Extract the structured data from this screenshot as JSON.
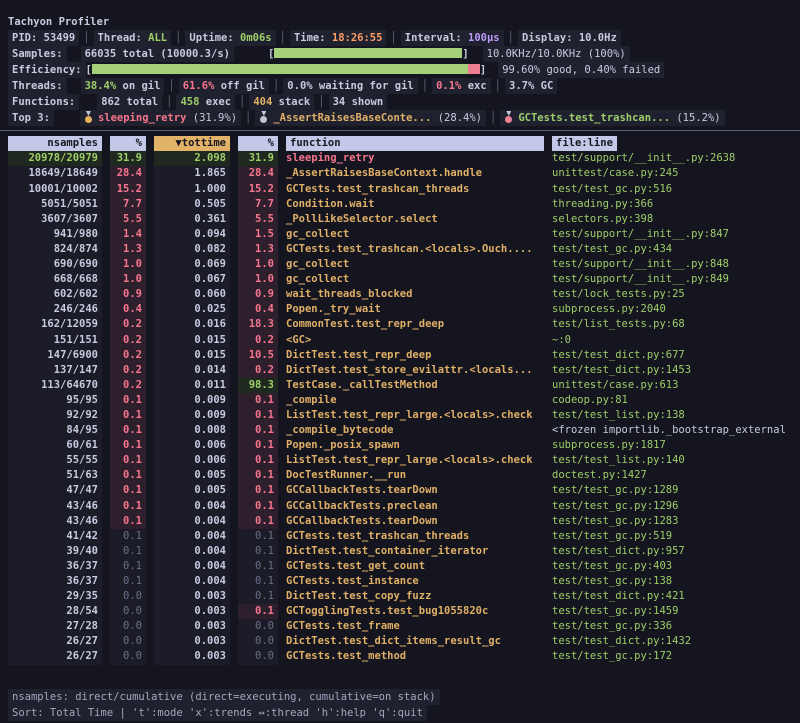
{
  "title": "Tachyon Profiler",
  "status": {
    "segments": [
      {
        "key": "pid",
        "label": "PID:",
        "value": "53499",
        "color": "fg"
      },
      {
        "key": "thread",
        "label": "Thread:",
        "value": "ALL",
        "color": "green"
      },
      {
        "key": "uptime",
        "label": "Uptime:",
        "value": "0m06s",
        "color": "green"
      },
      {
        "key": "time",
        "label": "Time:",
        "value": "18:26:55",
        "color": "orange"
      },
      {
        "key": "interval",
        "label": "Interval:",
        "value": "100µs",
        "color": "purple"
      },
      {
        "key": "display",
        "label": "Display:",
        "value": "10.0Hz",
        "color": "fg"
      }
    ]
  },
  "samples": {
    "label": "Samples:",
    "value": "66035 total (10000.3/s)",
    "bar_fill_pct": 100,
    "rate": "10.0KHz/10.0KHz (100%)"
  },
  "efficiency": {
    "label": "Efficiency:",
    "good_pct": 99.6,
    "failed_pct": 0.4,
    "summary": "99.60% good, 0.40% failed"
  },
  "threads": {
    "label": "Threads:",
    "stats": [
      {
        "value": "38.4%",
        "text": " on gil",
        "color": "green"
      },
      {
        "value": "61.6%",
        "text": " off gil",
        "color": "red"
      },
      {
        "value": "0.0%",
        "text": " waiting for gil",
        "color": "fg"
      },
      {
        "value": "0.1%",
        "text": " exc",
        "color": "red"
      },
      {
        "value": "3.7%",
        "text": " GC",
        "color": "fg"
      }
    ]
  },
  "functions": {
    "label": "Functions:",
    "stats": [
      {
        "value": "862",
        "text": " total",
        "color": "fg"
      },
      {
        "value": "458",
        "text": " exec",
        "color": "green"
      },
      {
        "value": "404",
        "text": " stack",
        "color": "yellow"
      },
      {
        "value": "34",
        "text": " shown",
        "color": "fg"
      }
    ]
  },
  "top3": {
    "label": "Top 3:",
    "entries": [
      {
        "rank": 1,
        "medal": "gold",
        "name": "sleeping_retry",
        "pct": "(31.9%)",
        "color": "red"
      },
      {
        "rank": 2,
        "medal": "silver",
        "name": "_AssertRaisesBaseConte...",
        "pct": "(28.4%)",
        "color": "yellow"
      },
      {
        "rank": 3,
        "medal": "bronze",
        "name": "GCTests.test_trashcan...",
        "pct": "(15.2%)",
        "color": "green"
      }
    ]
  },
  "table": {
    "columns": [
      {
        "label": "nsamples",
        "align": "r"
      },
      {
        "label": "%",
        "align": "r"
      },
      {
        "label": "▼tottime",
        "align": "r",
        "sorted": true
      },
      {
        "label": "%",
        "align": "r"
      },
      {
        "label": "function",
        "align": "l"
      },
      {
        "label": "file:line",
        "align": "l",
        "fit": true
      }
    ],
    "rows": [
      {
        "nsamples": "20978/20979",
        "pct": "31.9",
        "tottime": "2.098",
        "cum_pct": "31.9",
        "function": "sleeping_retry",
        "file": "test/support/__init__.py:2638",
        "styles": [
          "g",
          "g",
          "g",
          "g",
          "hot",
          "fl"
        ]
      },
      {
        "nsamples": "18649/18649",
        "pct": "28.4",
        "tottime": "1.865",
        "cum_pct": "28.4",
        "function": "_AssertRaisesBaseContext.handle",
        "file": "unittest/case.py:245",
        "styles": [
          "p",
          "r",
          "p",
          "r",
          "fn",
          "fl"
        ]
      },
      {
        "nsamples": "10001/10002",
        "pct": "15.2",
        "tottime": "1.000",
        "cum_pct": "15.2",
        "function": "GCTests.test_trashcan_threads",
        "file": "test/test_gc.py:516",
        "styles": [
          "p",
          "r",
          "p",
          "r",
          "fn",
          "fl"
        ]
      },
      {
        "nsamples": "5051/5051",
        "pct": "7.7",
        "tottime": "0.505",
        "cum_pct": "7.7",
        "function": "Condition.wait",
        "file": "threading.py:366",
        "styles": [
          "p",
          "r",
          "p",
          "r",
          "fn",
          "fl"
        ]
      },
      {
        "nsamples": "3607/3607",
        "pct": "5.5",
        "tottime": "0.361",
        "cum_pct": "5.5",
        "function": "_PollLikeSelector.select",
        "file": "selectors.py:398",
        "styles": [
          "p",
          "r",
          "p",
          "r",
          "fn",
          "fl"
        ]
      },
      {
        "nsamples": "941/980",
        "pct": "1.4",
        "tottime": "0.094",
        "cum_pct": "1.5",
        "function": "gc_collect",
        "file": "test/support/__init__.py:847",
        "styles": [
          "p",
          "r",
          "p",
          "r",
          "fn",
          "fl"
        ]
      },
      {
        "nsamples": "824/874",
        "pct": "1.3",
        "tottime": "0.082",
        "cum_pct": "1.3",
        "function": "GCTests.test_trashcan.<locals>.Ouch....",
        "file": "test/test_gc.py:434",
        "styles": [
          "p",
          "r",
          "p",
          "r",
          "fn",
          "fl"
        ]
      },
      {
        "nsamples": "690/690",
        "pct": "1.0",
        "tottime": "0.069",
        "cum_pct": "1.0",
        "function": "gc_collect",
        "file": "test/support/__init__.py:848",
        "styles": [
          "p",
          "r",
          "p",
          "r",
          "fn",
          "fl"
        ]
      },
      {
        "nsamples": "668/668",
        "pct": "1.0",
        "tottime": "0.067",
        "cum_pct": "1.0",
        "function": "gc_collect",
        "file": "test/support/__init__.py:849",
        "styles": [
          "p",
          "r",
          "p",
          "r",
          "fn",
          "fl"
        ]
      },
      {
        "nsamples": "602/602",
        "pct": "0.9",
        "tottime": "0.060",
        "cum_pct": "0.9",
        "function": "wait_threads_blocked",
        "file": "test/lock_tests.py:25",
        "styles": [
          "p",
          "r",
          "p",
          "r",
          "fn",
          "fl"
        ]
      },
      {
        "nsamples": "246/246",
        "pct": "0.4",
        "tottime": "0.025",
        "cum_pct": "0.4",
        "function": "Popen._try_wait",
        "file": "subprocess.py:2040",
        "styles": [
          "p",
          "r",
          "p",
          "r",
          "fn",
          "fl"
        ]
      },
      {
        "nsamples": "162/12059",
        "pct": "0.2",
        "tottime": "0.016",
        "cum_pct": "18.3",
        "function": "CommonTest.test_repr_deep",
        "file": "test/list_tests.py:68",
        "styles": [
          "p",
          "r",
          "p",
          "r",
          "fn",
          "fl"
        ]
      },
      {
        "nsamples": "151/151",
        "pct": "0.2",
        "tottime": "0.015",
        "cum_pct": "0.2",
        "function": "<GC>",
        "file": "~:0",
        "styles": [
          "p",
          "r",
          "p",
          "r",
          "fn",
          "fl"
        ]
      },
      {
        "nsamples": "147/6900",
        "pct": "0.2",
        "tottime": "0.015",
        "cum_pct": "10.5",
        "function": "DictTest.test_repr_deep",
        "file": "test/test_dict.py:677",
        "styles": [
          "p",
          "r",
          "p",
          "r",
          "fn",
          "fl"
        ]
      },
      {
        "nsamples": "137/147",
        "pct": "0.2",
        "tottime": "0.014",
        "cum_pct": "0.2",
        "function": "DictTest.test_store_evilattr.<locals...",
        "file": "test/test_dict.py:1453",
        "styles": [
          "p",
          "r",
          "p",
          "r",
          "fn",
          "fl"
        ]
      },
      {
        "nsamples": "113/64670",
        "pct": "0.2",
        "tottime": "0.011",
        "cum_pct": "98.3",
        "function": "TestCase._callTestMethod",
        "file": "unittest/case.py:613",
        "styles": [
          "p",
          "r",
          "p",
          "g",
          "fn",
          "fl"
        ]
      },
      {
        "nsamples": "95/95",
        "pct": "0.1",
        "tottime": "0.009",
        "cum_pct": "0.1",
        "function": "_compile",
        "file": "codeop.py:81",
        "styles": [
          "p",
          "r",
          "p",
          "r",
          "fn",
          "fl"
        ]
      },
      {
        "nsamples": "92/92",
        "pct": "0.1",
        "tottime": "0.009",
        "cum_pct": "0.1",
        "function": "ListTest.test_repr_large.<locals>.check",
        "file": "test/test_list.py:138",
        "styles": [
          "p",
          "r",
          "p",
          "r",
          "fn",
          "fl"
        ]
      },
      {
        "nsamples": "84/95",
        "pct": "0.1",
        "tottime": "0.008",
        "cum_pct": "0.1",
        "function": "_compile_bytecode",
        "file": "<frozen importlib._bootstrap_external",
        "styles": [
          "p",
          "r",
          "p",
          "r",
          "fn",
          "fw"
        ]
      },
      {
        "nsamples": "60/61",
        "pct": "0.1",
        "tottime": "0.006",
        "cum_pct": "0.1",
        "function": "Popen._posix_spawn",
        "file": "subprocess.py:1817",
        "styles": [
          "p",
          "r",
          "p",
          "r",
          "fn",
          "fl"
        ]
      },
      {
        "nsamples": "55/55",
        "pct": "0.1",
        "tottime": "0.006",
        "cum_pct": "0.1",
        "function": "ListTest.test_repr_large.<locals>.check",
        "file": "test/test_list.py:140",
        "styles": [
          "p",
          "r",
          "p",
          "r",
          "fn",
          "fl"
        ]
      },
      {
        "nsamples": "51/63",
        "pct": "0.1",
        "tottime": "0.005",
        "cum_pct": "0.1",
        "function": "DocTestRunner.__run",
        "file": "doctest.py:1427",
        "styles": [
          "p",
          "r",
          "p",
          "r",
          "fn",
          "fl"
        ]
      },
      {
        "nsamples": "47/47",
        "pct": "0.1",
        "tottime": "0.005",
        "cum_pct": "0.1",
        "function": "GCCallbackTests.tearDown",
        "file": "test/test_gc.py:1289",
        "styles": [
          "p",
          "r",
          "p",
          "r",
          "fn",
          "fl"
        ]
      },
      {
        "nsamples": "43/46",
        "pct": "0.1",
        "tottime": "0.004",
        "cum_pct": "0.1",
        "function": "GCCallbackTests.preclean",
        "file": "test/test_gc.py:1296",
        "styles": [
          "p",
          "r",
          "p",
          "r",
          "fn",
          "fl"
        ]
      },
      {
        "nsamples": "43/46",
        "pct": "0.1",
        "tottime": "0.004",
        "cum_pct": "0.1",
        "function": "GCCallbackTests.tearDown",
        "file": "test/test_gc.py:1283",
        "styles": [
          "p",
          "r",
          "p",
          "r",
          "fn",
          "fl"
        ]
      },
      {
        "nsamples": "41/42",
        "pct": "0.1",
        "tottime": "0.004",
        "cum_pct": "0.1",
        "function": "GCTests.test_trashcan_threads",
        "file": "test/test_gc.py:519",
        "styles": [
          "p",
          "d",
          "p",
          "d",
          "fn",
          "fl"
        ]
      },
      {
        "nsamples": "39/40",
        "pct": "0.1",
        "tottime": "0.004",
        "cum_pct": "0.1",
        "function": "DictTest.test_container_iterator",
        "file": "test/test_dict.py:957",
        "styles": [
          "p",
          "d",
          "p",
          "d",
          "fn",
          "fl"
        ]
      },
      {
        "nsamples": "36/37",
        "pct": "0.1",
        "tottime": "0.004",
        "cum_pct": "0.1",
        "function": "GCTests.test_get_count",
        "file": "test/test_gc.py:403",
        "styles": [
          "p",
          "d",
          "p",
          "d",
          "fn",
          "fl"
        ]
      },
      {
        "nsamples": "36/37",
        "pct": "0.1",
        "tottime": "0.004",
        "cum_pct": "0.1",
        "function": "GCTests.test_instance",
        "file": "test/test_gc.py:138",
        "styles": [
          "p",
          "d",
          "p",
          "d",
          "fn",
          "fl"
        ]
      },
      {
        "nsamples": "29/35",
        "pct": "0.0",
        "tottime": "0.003",
        "cum_pct": "0.1",
        "function": "DictTest.test_copy_fuzz",
        "file": "test/test_dict.py:421",
        "styles": [
          "p",
          "d",
          "p",
          "d",
          "fn",
          "fl"
        ]
      },
      {
        "nsamples": "28/54",
        "pct": "0.0",
        "tottime": "0.003",
        "cum_pct": "0.1",
        "function": "GCTogglingTests.test_bug1055820c",
        "file": "test/test_gc.py:1459",
        "styles": [
          "p",
          "d",
          "p",
          "r",
          "fn",
          "fl"
        ]
      },
      {
        "nsamples": "27/28",
        "pct": "0.0",
        "tottime": "0.003",
        "cum_pct": "0.0",
        "function": "GCTests.test_frame",
        "file": "test/test_gc.py:336",
        "styles": [
          "p",
          "d",
          "p",
          "d",
          "fn",
          "fl"
        ]
      },
      {
        "nsamples": "26/27",
        "pct": "0.0",
        "tottime": "0.003",
        "cum_pct": "0.0",
        "function": "DictTest.test_dict_items_result_gc",
        "file": "test/test_dict.py:1432",
        "styles": [
          "p",
          "d",
          "p",
          "d",
          "fn",
          "fl"
        ]
      },
      {
        "nsamples": "26/27",
        "pct": "0.0",
        "tottime": "0.003",
        "cum_pct": "0.0",
        "function": "GCTests.test_method",
        "file": "test/test_gc.py:172",
        "styles": [
          "p",
          "d",
          "p",
          "d",
          "fn",
          "fl"
        ]
      }
    ]
  },
  "footer": {
    "line1": "nsamples: direct/cumulative (direct=executing, cumulative=on stack)",
    "line2": "Sort: Total Time | 't':mode 'x':trends ↔:thread 'h':help 'q':quit"
  },
  "colors": {
    "background": "#14151e",
    "good_green": "#9ece6a",
    "hot_red": "#f7768e",
    "time_orange": "#ff9e64",
    "func_yellow": "#e0af68",
    "interval_purple": "#bb9af7",
    "header_lavender": "#c4c8e8",
    "sort_header_orange": "#e2b269"
  }
}
